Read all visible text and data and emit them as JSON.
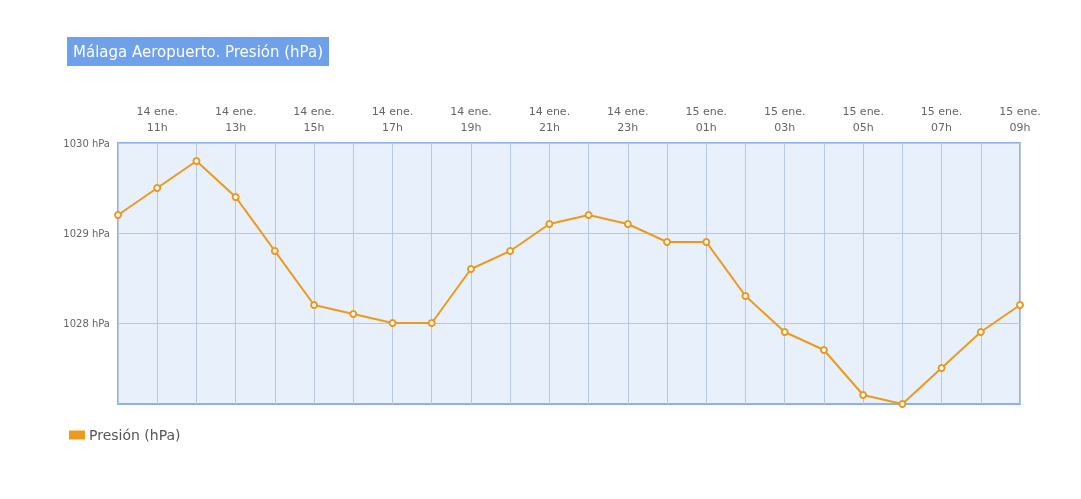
{
  "chart_data": {
    "type": "line",
    "title": "Málaga Aeropuerto. Presión (hPa)",
    "categories": [
      null,
      "14 ene.\n11h",
      null,
      "14 ene.\n13h",
      null,
      "14 ene.\n15h",
      null,
      "14 ene.\n17h",
      null,
      "14 ene.\n19h",
      null,
      "14 ene.\n21h",
      null,
      "14 ene.\n23h",
      null,
      "15 ene.\n01h",
      null,
      "15 ene.\n03h",
      null,
      "15 ene.\n05h",
      null,
      "15 ene.\n07h",
      null,
      "15 ene.\n09h"
    ],
    "series": [
      {
        "name": "Presión (hPa)",
        "color": "#eb9a1e",
        "values": [
          1029.2,
          1029.5,
          1029.8,
          1029.4,
          1028.8,
          1028.2,
          1028.1,
          1028.0,
          1028.0,
          1028.6,
          1028.8,
          1029.1,
          1029.2,
          1029.1,
          1028.9,
          1028.9,
          1028.3,
          1027.9,
          1027.7,
          1027.2,
          1027.1,
          1027.5,
          1027.9,
          1028.2
        ]
      }
    ],
    "ylim": [
      1027.1,
      1030
    ],
    "yticks": [
      {
        "value": 1028,
        "label": "1028 hPa"
      },
      {
        "value": 1029,
        "label": "1029 hPa"
      },
      {
        "value": 1030,
        "label": "1030 hPa"
      }
    ],
    "grid": true,
    "legend": "bottom left",
    "marker": "circle",
    "line_style": "solid"
  }
}
